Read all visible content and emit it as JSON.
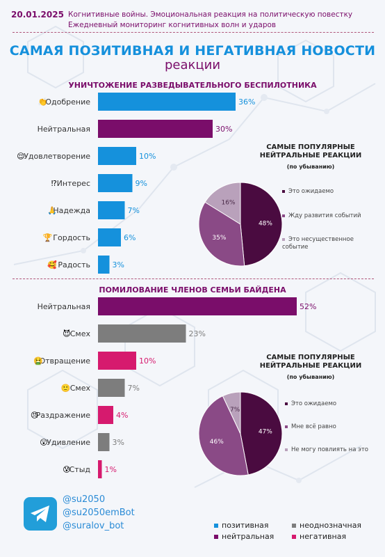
{
  "header": {
    "date": "20.01.2025",
    "line1": "Когнитивные войны. Эмоциональная реакция на политическую повестку",
    "line2": "Ежедневный мониторинг когнитивных волн и ударов"
  },
  "title": "САМАЯ ПОЗИТИВНАЯ И НЕГАТИВНАЯ НОВОСТИ",
  "subtitle": "реакции",
  "colors": {
    "positive": "#1591dc",
    "neutral": "#7a0d6a",
    "ambiguous": "#7d7d7d",
    "negative": "#d61a6e",
    "accent_title": "#1590dc"
  },
  "chart_data": [
    {
      "type": "bar",
      "title": "УНИЧТОЖЕНИЕ РАЗВЕДЫВАТЕЛЬНОГО БЕСПИЛОТНИКА",
      "categories": [
        "Одобрение",
        "Нейтральная",
        "Удовлетворение",
        "Интерес",
        "Надежда",
        "Гордость",
        "Радость"
      ],
      "icons": [
        "👏",
        "",
        "😌",
        "⁉",
        "🙏",
        "🏆",
        "🥰"
      ],
      "values": [
        36,
        30,
        10,
        9,
        7,
        6,
        3
      ],
      "labels": [
        "36%",
        "30%",
        "10%",
        "9%",
        "7%",
        "6%",
        "3%"
      ],
      "groups": [
        "positive",
        "neutral",
        "positive",
        "positive",
        "positive",
        "positive",
        "positive"
      ],
      "xlim": [
        0,
        60
      ]
    },
    {
      "type": "pie",
      "title": "САМЫЕ ПОПУЛЯРНЫЕ НЕЙТРАЛЬНЫЕ РЕАКЦИИ",
      "subtitle": "(по убыванию)",
      "values": [
        48,
        35,
        16
      ],
      "labels": [
        "48%",
        "35%",
        "16%"
      ],
      "legend": [
        "Это ожидаемо",
        "Жду развития событий",
        "Это несущественное событие"
      ],
      "colors": [
        "#4a0b40",
        "#8a4a86",
        "#b9a1bb"
      ]
    },
    {
      "type": "bar",
      "title": "ПОМИЛОВАНИЕ ЧЛЕНОВ СЕМЬИ БАЙДЕНА",
      "categories": [
        "Нейтральная",
        "Смех",
        "Отвращение",
        "Смех",
        "Раздражение",
        "Удивление",
        "Стыд"
      ],
      "icons": [
        "",
        "😈",
        "🤮",
        "🙂",
        "😠",
        "😲",
        "😰"
      ],
      "values": [
        52,
        23,
        10,
        7,
        4,
        3,
        1
      ],
      "labels": [
        "52%",
        "23%",
        "10%",
        "7%",
        "4%",
        "3%",
        "1%"
      ],
      "groups": [
        "neutral",
        "ambiguous",
        "negative",
        "ambiguous",
        "negative",
        "ambiguous",
        "negative"
      ],
      "xlim": [
        0,
        60
      ]
    },
    {
      "type": "pie",
      "title": "САМЫЕ ПОПУЛЯРНЫЕ НЕЙТРАЛЬНЫЕ РЕАКЦИИ",
      "subtitle": "(по убыванию)",
      "values": [
        47,
        46,
        7
      ],
      "labels": [
        "47%",
        "46%",
        "7%"
      ],
      "legend": [
        "Это ожидаемо",
        "Мне всё равно",
        "Не могу повлиять на это"
      ],
      "colors": [
        "#4a0b40",
        "#8a4a86",
        "#b9a1bb"
      ]
    }
  ],
  "social": {
    "icon": "telegram-icon",
    "handles": [
      "@su2050",
      "@su2050emBot",
      "@suralov_bot"
    ]
  },
  "legend": [
    {
      "label": "позитивная",
      "group": "positive"
    },
    {
      "label": "неоднозначная",
      "group": "ambiguous"
    },
    {
      "label": "нейтральная",
      "group": "neutral"
    },
    {
      "label": "негативная",
      "group": "negative"
    }
  ]
}
